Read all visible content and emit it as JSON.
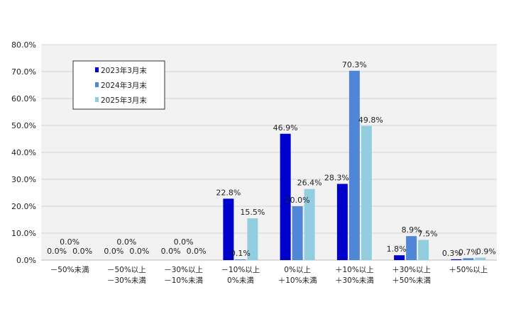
{
  "chart_data": {
    "type": "bar",
    "categories": [
      [
        "－50%未満"
      ],
      [
        "－50%以上",
        "－30%未満"
      ],
      [
        "－30%以上",
        "－10%未満"
      ],
      [
        "－10%以上",
        "0%未満"
      ],
      [
        "0%以上",
        "＋10%未満"
      ],
      [
        "＋10%以上",
        "＋30%未満"
      ],
      [
        "＋30%以上",
        "＋50%未満"
      ],
      [
        "＋50%以上"
      ]
    ],
    "series": [
      {
        "name": "2023年3月末",
        "color": "#0000cc",
        "values": [
          0.0,
          0.0,
          0.0,
          22.8,
          46.9,
          28.3,
          1.8,
          0.3
        ]
      },
      {
        "name": "2024年3月末",
        "color": "#4f86d6",
        "values": [
          0.0,
          0.0,
          0.0,
          0.1,
          20.0,
          70.3,
          8.9,
          0.7
        ]
      },
      {
        "name": "2025年3月末",
        "color": "#93cde0",
        "values": [
          0.0,
          0.0,
          0.0,
          15.5,
          26.4,
          49.8,
          7.5,
          0.9
        ]
      }
    ],
    "data_labels": [
      [
        "0.0%",
        "0.0%",
        "0.0%",
        "22.8%",
        "46.9%",
        "28.3%",
        "1.8%",
        "0.3%"
      ],
      [
        "0.0%",
        "0.0%",
        "0.0%",
        "0.1%",
        "20.0%",
        "70.3%",
        "8.9%",
        "0.7%"
      ],
      [
        "0.0%",
        "0.0%",
        "0.0%",
        "15.5%",
        "26.4%",
        "49.8%",
        "7.5%",
        "0.9%"
      ]
    ],
    "y_ticks": [
      "0.0%",
      "10.0%",
      "20.0%",
      "30.0%",
      "40.0%",
      "50.0%",
      "60.0%",
      "70.0%",
      "80.0%"
    ],
    "ylim": [
      0,
      80
    ],
    "grid": true,
    "legend_position": "top-left",
    "title": "",
    "xlabel": "",
    "ylabel": ""
  }
}
